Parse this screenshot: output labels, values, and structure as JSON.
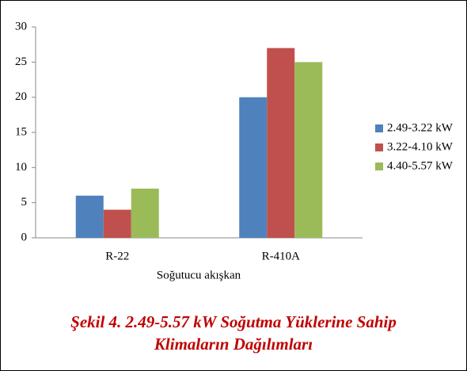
{
  "chart_data": {
    "type": "bar",
    "categories": [
      "R-22",
      "R-410A"
    ],
    "series": [
      {
        "name": "2.49-3.22 kW",
        "color": "#4f81bd",
        "values": [
          6,
          20
        ]
      },
      {
        "name": "3.22-4.10 kW",
        "color": "#c0504d",
        "values": [
          4,
          27
        ]
      },
      {
        "name": "4.40-5.57 kW",
        "color": "#9bbb59",
        "values": [
          7,
          25
        ]
      }
    ],
    "x_label": "Soğutucu akışkan",
    "ylim": [
      0,
      30
    ],
    "yticks": [
      0,
      5,
      10,
      15,
      20,
      25,
      30
    ],
    "legend": "right",
    "caption": [
      "Şekil 4. 2.49-5.57 kW Soğutma Yüklerine Sahip",
      "Klimaların Dağılımları"
    ]
  }
}
